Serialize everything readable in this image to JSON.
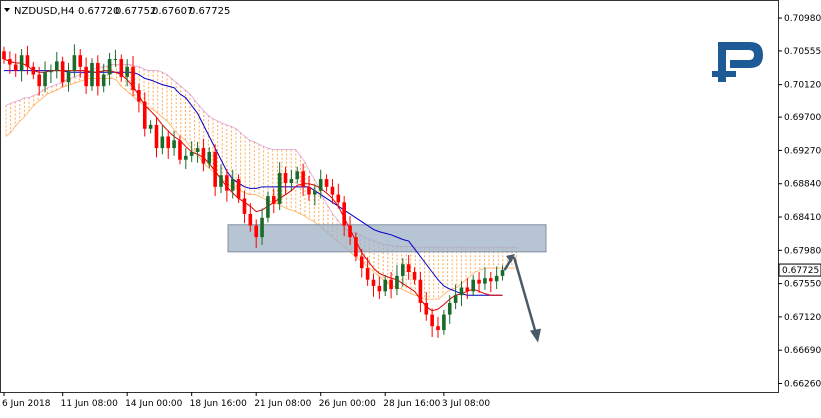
{
  "header": {
    "symbol": "NZDUSD,H4",
    "open": "0.67720",
    "high": "0.67752",
    "low": "0.67607",
    "close": "0.67725"
  },
  "price_tag": "0.67725",
  "colors": {
    "bull": "#1a6b2a",
    "bear": "#ff0000",
    "tenkan": "#e00000",
    "kijun": "#0000cc",
    "cloud_a": "#ff9933",
    "cloud_b": "#cc66cc",
    "zone": "#9fb0c4",
    "arrow": "#4a5a6a",
    "logo": "#1e5a96"
  },
  "chart_data": {
    "type": "candlestick",
    "ylim": [
      0.6615,
      0.712
    ],
    "y_ticks": [
      "0.70980",
      "0.70555",
      "0.70120",
      "0.69700",
      "0.69270",
      "0.68840",
      "0.68410",
      "0.67980",
      "0.67550",
      "0.67120",
      "0.66690",
      "0.66260"
    ],
    "x_ticks": [
      "6 Jun 2018",
      "11 Jun 08:00",
      "14 Jun 00:00",
      "18 Jun 16:00",
      "21 Jun 08:00",
      "26 Jun 00:00",
      "28 Jun 16:00",
      "3 Jul 08:00"
    ],
    "last_price": 0.67725,
    "closes": [
      0.7045,
      0.7038,
      0.703,
      0.705,
      0.7035,
      0.7025,
      0.701,
      0.7028,
      0.703,
      0.7042,
      0.7015,
      0.703,
      0.705,
      0.7035,
      0.701,
      0.704,
      0.701,
      0.7025,
      0.7045,
      0.7045,
      0.7022,
      0.7035,
      0.7005,
      0.699,
      0.6955,
      0.696,
      0.693,
      0.6945,
      0.693,
      0.694,
      0.6915,
      0.692,
      0.6925,
      0.693,
      0.691,
      0.6925,
      0.688,
      0.6895,
      0.6875,
      0.689,
      0.6865,
      0.6845,
      0.683,
      0.6815,
      0.684,
      0.6868,
      0.6858,
      0.6898,
      0.6885,
      0.689,
      0.69,
      0.688,
      0.687,
      0.6875,
      0.689,
      0.688,
      0.687,
      0.686,
      0.683,
      0.6815,
      0.679,
      0.6775,
      0.676,
      0.6752,
      0.6745,
      0.676,
      0.6748,
      0.6765,
      0.678,
      0.677,
      0.676,
      0.673,
      0.6715,
      0.67,
      0.6695,
      0.6715,
      0.673,
      0.674,
      0.675,
      0.6745,
      0.676,
      0.6755,
      0.6762,
      0.6758,
      0.6765,
      0.67725
    ],
    "tenkan": [
      0.7045,
      0.7042,
      0.704,
      0.704,
      0.7036,
      0.703,
      0.7028,
      0.7028,
      0.703,
      0.703,
      0.703,
      0.703,
      0.703,
      0.703,
      0.703,
      0.7028,
      0.7028,
      0.703,
      0.703,
      0.7028,
      0.7025,
      0.7018,
      0.701,
      0.6998,
      0.6985,
      0.6978,
      0.697,
      0.696,
      0.6952,
      0.6945,
      0.694,
      0.6932,
      0.6925,
      0.6922,
      0.6918,
      0.691,
      0.69,
      0.689,
      0.688,
      0.6872,
      0.6865,
      0.686,
      0.6855,
      0.6848,
      0.685,
      0.6855,
      0.686,
      0.6865,
      0.687,
      0.6875,
      0.6882,
      0.6884,
      0.6884,
      0.6882,
      0.6878,
      0.6872,
      0.6865,
      0.6855,
      0.684,
      0.6825,
      0.681,
      0.6795,
      0.6785,
      0.6775,
      0.6768,
      0.6765,
      0.6762,
      0.676,
      0.6755,
      0.675,
      0.6745,
      0.6735,
      0.6725,
      0.672,
      0.6722,
      0.6728,
      0.6735,
      0.674,
      0.6742,
      0.6745,
      0.6748,
      0.6745,
      0.6742,
      0.674,
      0.674,
      0.674
    ],
    "kijun": [
      0.703,
      0.703,
      0.703,
      0.703,
      0.703,
      0.703,
      0.703,
      0.703,
      0.703,
      0.703,
      0.703,
      0.7028,
      0.7028,
      0.7028,
      0.7028,
      0.7028,
      0.7028,
      0.7028,
      0.7028,
      0.7028,
      0.7028,
      0.7028,
      0.7028,
      0.7025,
      0.702,
      0.7018,
      0.7015,
      0.7012,
      0.701,
      0.7008,
      0.7,
      0.6995,
      0.6985,
      0.6975,
      0.696,
      0.6945,
      0.693,
      0.6915,
      0.69,
      0.689,
      0.6885,
      0.688,
      0.6878,
      0.6878,
      0.688,
      0.688,
      0.688,
      0.688,
      0.688,
      0.688,
      0.688,
      0.688,
      0.688,
      0.6875,
      0.687,
      0.6865,
      0.686,
      0.6855,
      0.685,
      0.6845,
      0.684,
      0.6835,
      0.683,
      0.6825,
      0.6822,
      0.682,
      0.6818,
      0.6815,
      0.6812,
      0.681,
      0.68,
      0.679,
      0.678,
      0.677,
      0.676,
      0.6752,
      0.6748,
      0.6745,
      0.6742,
      0.674,
      0.674,
      0.674,
      0.674,
      0.674,
      0.674,
      0.674
    ],
    "cloud_top": [
      0.6985,
      0.6988,
      0.699,
      0.6992,
      0.6995,
      0.6995,
      0.6998,
      0.7,
      0.7005,
      0.7008,
      0.701,
      0.7012,
      0.7015,
      0.7018,
      0.702,
      0.7022,
      0.7025,
      0.7028,
      0.703,
      0.7032,
      0.7034,
      0.7035,
      0.7036,
      0.7038,
      0.7038,
      0.7038,
      0.7038,
      0.7038,
      0.7036,
      0.7035,
      0.7032,
      0.703,
      0.703,
      0.703,
      0.7028,
      0.7025,
      0.702,
      0.7015,
      0.701,
      0.7005,
      0.7,
      0.6992,
      0.6985,
      0.6978,
      0.6972,
      0.6968,
      0.6965,
      0.6962,
      0.696,
      0.6958,
      0.6955,
      0.695,
      0.6945,
      0.694,
      0.6938,
      0.6935,
      0.6932,
      0.693,
      0.6928,
      0.6928,
      0.6928,
      0.6928,
      0.6928,
      0.6928,
      0.692,
      0.6912,
      0.69,
      0.689,
      0.688,
      0.6865,
      0.6855,
      0.6845,
      0.6838,
      0.683,
      0.6825,
      0.6822,
      0.682,
      0.6818,
      0.6815,
      0.6812,
      0.681,
      0.6808,
      0.6806,
      0.6805,
      0.6804,
      0.6803,
      0.6803,
      0.6803,
      0.6803,
      0.6802,
      0.6802,
      0.6802,
      0.6802,
      0.6802,
      0.6802,
      0.6802,
      0.6802,
      0.6802,
      0.6802,
      0.6802,
      0.6802,
      0.6802,
      0.6802,
      0.6802,
      0.6802,
      0.6802,
      0.6802,
      0.6802,
      0.6802,
      0.6802,
      0.6802,
      0.6802
    ],
    "cloud_bottom": [
      0.6945,
      0.695,
      0.6958,
      0.6965,
      0.697,
      0.6978,
      0.6985,
      0.699,
      0.6995,
      0.7,
      0.7002,
      0.7005,
      0.7008,
      0.701,
      0.7012,
      0.7014,
      0.7016,
      0.7018,
      0.702,
      0.702,
      0.702,
      0.702,
      0.702,
      0.702,
      0.7018,
      0.701,
      0.7005,
      0.7,
      0.6995,
      0.699,
      0.6985,
      0.6982,
      0.698,
      0.6975,
      0.697,
      0.6965,
      0.6958,
      0.695,
      0.6945,
      0.694,
      0.6932,
      0.6925,
      0.6918,
      0.691,
      0.6905,
      0.69,
      0.6895,
      0.689,
      0.6885,
      0.688,
      0.6878,
      0.6875,
      0.6872,
      0.687,
      0.687,
      0.6868,
      0.6865,
      0.6862,
      0.686,
      0.6858,
      0.6855,
      0.6852,
      0.685,
      0.6848,
      0.6845,
      0.6842,
      0.6838,
      0.6835,
      0.683,
      0.6825,
      0.682,
      0.6815,
      0.681,
      0.6805,
      0.68,
      0.6795,
      0.679,
      0.6785,
      0.678,
      0.6775,
      0.677,
      0.6765,
      0.676,
      0.6755,
      0.6752,
      0.675,
      0.6748,
      0.6745,
      0.6742,
      0.674,
      0.6738,
      0.6735,
      0.6735,
      0.6735,
      0.6735,
      0.674,
      0.6745,
      0.6748,
      0.675,
      0.6755,
      0.676,
      0.6765,
      0.677,
      0.6772,
      0.6775,
      0.6775,
      0.6775,
      0.6775,
      0.6775,
      0.6775,
      0.6775,
      0.6775
    ],
    "resistance_zone": [
      0.6796,
      0.6831
    ],
    "forecast": [
      0.67725,
      0.6792,
      0.668
    ]
  }
}
